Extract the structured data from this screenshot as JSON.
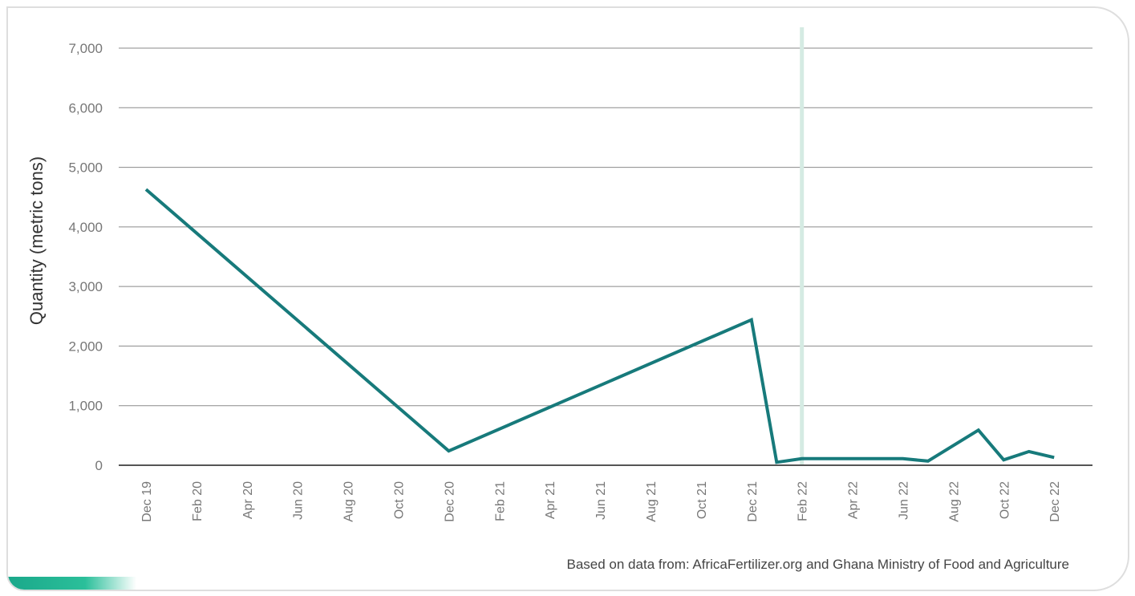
{
  "chart_data": {
    "type": "line",
    "title": "",
    "xlabel": "",
    "ylabel": "Quantity (metric tons)",
    "ylim": [
      0,
      7000
    ],
    "y_ticks": [
      0,
      1000,
      2000,
      3000,
      4000,
      5000,
      6000,
      7000
    ],
    "y_tick_labels": [
      "0",
      "1,000",
      "2,000",
      "3,000",
      "4,000",
      "5,000",
      "6,000",
      "7,000"
    ],
    "x_tick_labels": [
      "Dec 19",
      "Feb 20",
      "Apr 20",
      "Jun 20",
      "Aug 20",
      "Oct 20",
      "Dec 20",
      "Feb 21",
      "Apr 21",
      "Jun 21",
      "Aug 21",
      "Oct 21",
      "Dec 21",
      "Feb 22",
      "Apr 22",
      "Jun 22",
      "Aug 22",
      "Oct 22",
      "Dec 22"
    ],
    "grid": true,
    "series": [
      {
        "color": "#177a7b",
        "points": [
          {
            "x": "Dec 19",
            "y": 4630
          },
          {
            "x": "Dec 20",
            "y": 240
          },
          {
            "x": "Dec 21",
            "y": 2440
          },
          {
            "x": "Jan 22",
            "y": 50
          },
          {
            "x": "Feb 22",
            "y": 110
          },
          {
            "x": "Jun 22",
            "y": 110
          },
          {
            "x": "Jul 22",
            "y": 70
          },
          {
            "x": "Sep 22",
            "y": 590
          },
          {
            "x": "Oct 22",
            "y": 90
          },
          {
            "x": "Nov 22",
            "y": 230
          },
          {
            "x": "Dec 22",
            "y": 130
          }
        ]
      }
    ],
    "marker_line": {
      "x": "Feb 22",
      "color": "#d5ebe3"
    },
    "source": "Based on data from: AfricaFertilizer.org and Ghana Ministry of Food and Agriculture"
  }
}
